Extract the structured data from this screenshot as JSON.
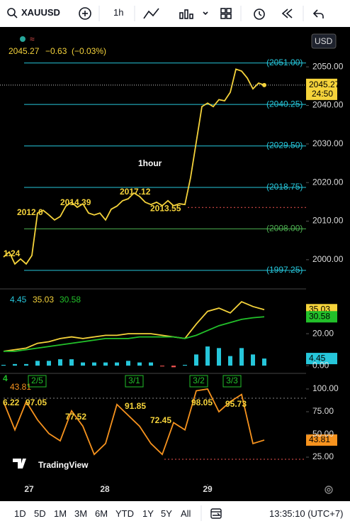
{
  "toolbar": {
    "symbol": "XAUUSD",
    "interval": "1h",
    "currency": "USD"
  },
  "chart_data": [
    {
      "type": "line",
      "legend": {
        "change": "−0.63",
        "change_pct": "(−0.03%)"
      },
      "x": [
        0,
        1,
        2,
        3,
        4,
        5,
        6,
        7,
        8,
        9,
        10,
        11,
        12,
        13,
        14,
        15,
        16,
        17,
        18,
        19,
        20,
        21,
        22,
        23,
        24,
        25,
        26,
        27,
        28,
        29,
        30,
        31,
        32,
        33,
        34,
        35,
        36,
        37,
        38,
        39,
        40,
        41,
        42,
        43,
        44,
        45,
        46
      ],
      "xlim": [
        0,
        53.375
      ],
      "series": [
        {
          "color": "#f5d33b",
          "values": [
            2000.7,
            2002,
            1998.9,
            2000.2,
            1998.9,
            2001.1,
            2012.1,
            2012.8,
            2011.6,
            2010.3,
            2011.2,
            2013.9,
            2014.9,
            2013.6,
            2014.5,
            2012.1,
            2011.6,
            2012.1,
            2010.3,
            2013.1,
            2013.9,
            2015.3,
            2015.8,
            2017.3,
            2016.4,
            2014.9,
            2014.3,
            2014.9,
            2014,
            2015.3,
            2014,
            2014.5,
            2014.3,
            2021.3,
            2030.5,
            2039.7,
            2040.6,
            2039.7,
            2041.5,
            2041.2,
            2043.4,
            2049.4,
            2048.9,
            2047.1,
            2044.3,
            2045.8,
            2045.27
          ]
        }
      ],
      "ylim": [
        1992.8,
        2059.6
      ],
      "yticks": [
        {
          "value": 2000,
          "label": "2000.00"
        },
        {
          "value": 2010,
          "label": "2010.00"
        },
        {
          "value": 2020,
          "label": "2020.00"
        },
        {
          "value": 2030,
          "label": "2030.00"
        },
        {
          "value": 2040,
          "label": "2040.00"
        },
        {
          "value": 2050,
          "label": "2050.00"
        }
      ],
      "fib_levels": [
        {
          "value": 2051,
          "label": "(2051.00)",
          "color": "#26c6da"
        },
        {
          "value": 2040.25,
          "label": "(2040.25)",
          "color": "#26c6da"
        },
        {
          "value": 2029.5,
          "label": "(2029.50)",
          "color": "#26c6da"
        },
        {
          "value": 2018.75,
          "label": "(2018.75)",
          "color": "#26c6da"
        },
        {
          "value": 2008,
          "label": "(2008.00)",
          "color": "#4caf50"
        },
        {
          "value": 1997.25,
          "label": "(1997.25)",
          "color": "#26c6da"
        }
      ],
      "low_level": 2013.55,
      "countdown": "24:50",
      "annotations": [
        "1.24",
        "2012.0",
        "2014.39",
        "2017.12",
        "1hour"
      ]
    },
    {
      "type": "line",
      "x": [
        0,
        1,
        2,
        3,
        4,
        5,
        6,
        7,
        8,
        9,
        10,
        11,
        12,
        13,
        14,
        15,
        16,
        17,
        18,
        19,
        20,
        21,
        22,
        23
      ],
      "xlim": [
        0,
        26.6875
      ],
      "series": [
        {
          "color": "#f5d33b",
          "values": [
            9,
            10,
            11,
            14,
            15,
            17,
            18,
            17,
            18,
            19,
            19,
            20,
            20,
            20,
            19,
            18,
            17,
            26,
            34,
            36,
            33,
            40,
            37,
            35.03
          ]
        },
        {
          "color": "#22c02a",
          "values": [
            9,
            9,
            10,
            11,
            12,
            13,
            14,
            15,
            16,
            17,
            17,
            17,
            18,
            18,
            18,
            18,
            17,
            19,
            22,
            25,
            27,
            29,
            30,
            30.58
          ]
        }
      ],
      "histogram": {
        "color": "#26c6da",
        "negative_color": "#ef5350",
        "values": [
          0.5,
          1,
          1,
          3,
          3,
          4,
          4,
          2,
          2,
          2,
          2,
          3,
          2,
          2,
          -0.5,
          -1,
          0.5,
          7,
          12,
          11,
          6,
          11,
          7,
          4.45
        ]
      },
      "ylim": [
        -4.4,
        46.7
      ],
      "yticks": [
        {
          "value": 0,
          "label": "0.00"
        },
        {
          "value": 20,
          "label": "20.00"
        }
      ]
    },
    {
      "type": "line",
      "x": [
        0,
        1,
        2,
        3,
        4,
        5,
        6,
        7,
        8,
        9,
        10,
        11,
        12,
        13,
        14,
        15,
        16,
        17,
        18,
        19,
        20,
        21,
        22,
        23
      ],
      "xlim": [
        0,
        26.6875
      ],
      "series": [
        {
          "color": "#f7931e",
          "values": [
            86,
            55,
            86,
            66,
            51,
            43,
            76,
            59,
            28,
            40,
            83,
            71,
            59,
            40,
            28,
            63,
            55,
            98,
            100,
            75,
            86,
            94,
            40,
            43.81
          ]
        }
      ],
      "ylim": [
        -3.1,
        115.6
      ],
      "yticks": [
        {
          "value": 25,
          "label": "25.00"
        },
        {
          "value": 50,
          "label": "50.00"
        },
        {
          "value": 75,
          "label": "75.00"
        },
        {
          "value": 100,
          "label": "100.00"
        }
      ],
      "xticks": [
        {
          "value": 2.25,
          "label": "27"
        },
        {
          "value": 8.9375,
          "label": "28"
        },
        {
          "value": 18,
          "label": "29"
        }
      ],
      "annotations": [
        "4",
        "6.22",
        "97.05",
        "77.52",
        "91.85",
        "72.45",
        "98.05",
        "95.73"
      ],
      "tags": [
        "2/5",
        "3/1",
        "3/2",
        "3/3"
      ],
      "watermark": "TradingView"
    }
  ],
  "range_bar": {
    "ranges": [
      "1D",
      "5D",
      "1M",
      "3M",
      "6M",
      "YTD",
      "1Y",
      "5Y",
      "All"
    ],
    "clock": "13:35:10 (UTC+7)"
  }
}
